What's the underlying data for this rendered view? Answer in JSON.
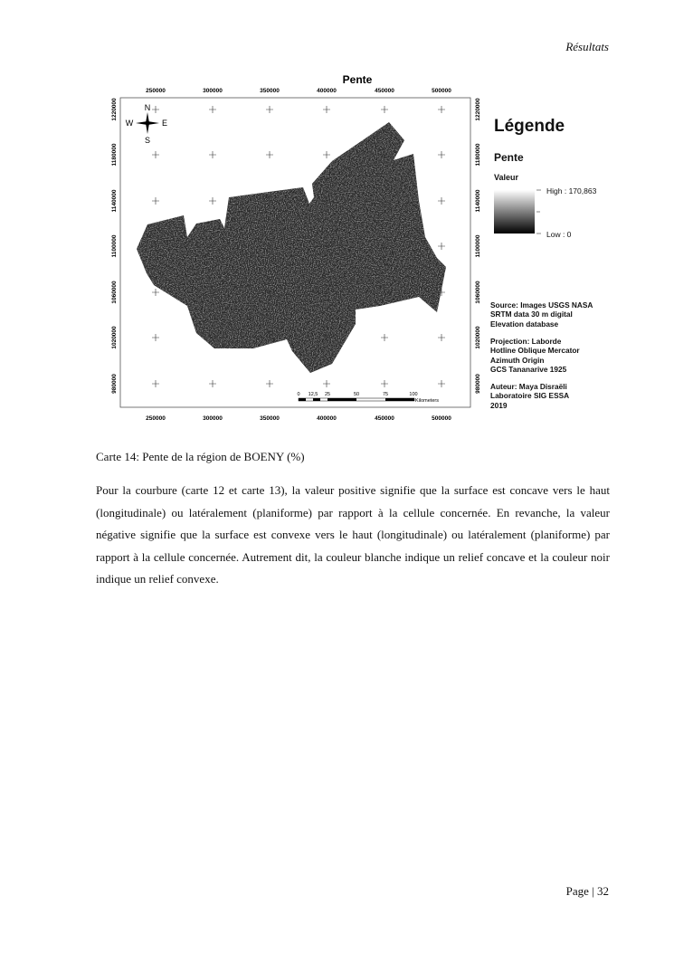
{
  "header": {
    "section": "Résultats"
  },
  "map": {
    "title": "Pente",
    "x_ticks": [
      "250000",
      "300000",
      "350000",
      "400000",
      "450000",
      "500000"
    ],
    "y_ticks": [
      "1220000",
      "1180000",
      "1140000",
      "1100000",
      "1060000",
      "1020000",
      "980000"
    ],
    "compass": {
      "n": "N",
      "s": "S",
      "e": "E",
      "w": "W"
    },
    "scale_bar": {
      "ticks": [
        "0",
        "12,5",
        "25",
        "50",
        "75",
        "100"
      ],
      "unit": "Kilometers"
    },
    "legend": {
      "title": "Légende",
      "layer": "Pente",
      "field": "Valeur",
      "high": "High : 170,863",
      "low": "Low : 0",
      "ramp_colors": [
        "#ffffff",
        "#000000"
      ]
    },
    "source": "Source: Images USGS NASA\nSRTM data 30 m digital\nElevation database",
    "projection": "Projection:  Laborde\nHotline Oblique Mercator\nAzimuth Origin\nGCS Tananarive 1925",
    "author": "Auteur: Maya Disraëli\nLaboratoire SIG ESSA\n2019"
  },
  "caption": "Carte 14: Pente de la région de BOENY (%)",
  "paragraph": "Pour la courbure (carte 12 et carte 13), la valeur positive signifie que la surface est concave vers le haut (longitudinale) ou latéralement (planiforme) par rapport à la cellule concernée. En revanche, la valeur négative signifie que la surface est convexe vers le haut (longitudinale) ou latéralement (planiforme) par rapport à la cellule concernée. Autrement dit, la couleur blanche indique un relief concave et la couleur noir indique un relief convexe.",
  "footer": {
    "page": "Page | 32"
  }
}
